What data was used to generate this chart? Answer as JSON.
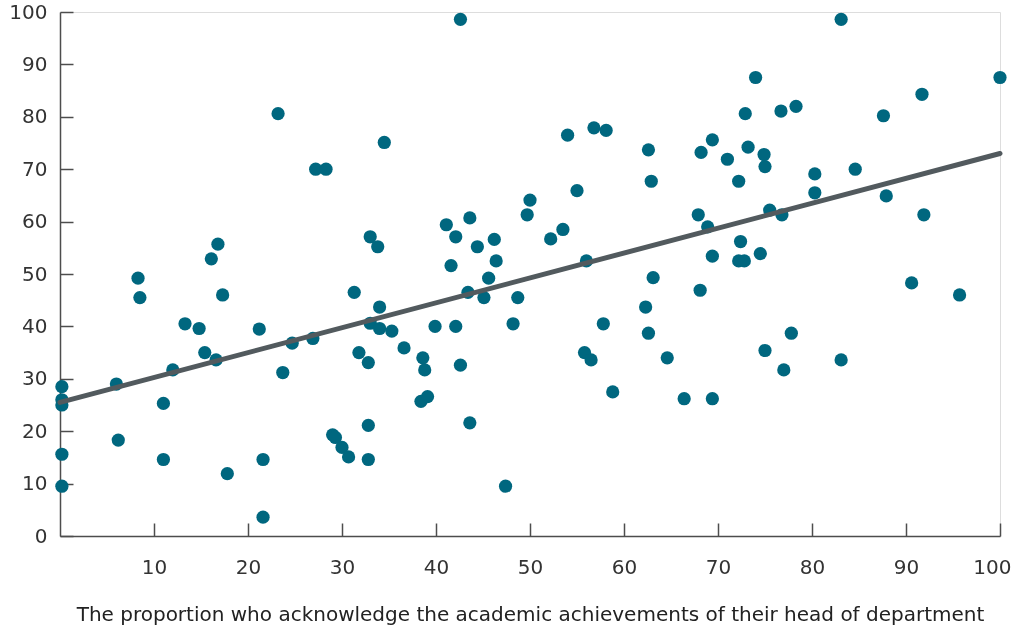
{
  "chart_data": {
    "type": "scatter",
    "xlabel": "The proportion who acknowledge the academic achievements of their head of department",
    "xlim": [
      0,
      100
    ],
    "xticks": [
      10,
      20,
      30,
      40,
      50,
      60,
      70,
      80,
      90,
      100
    ],
    "ylim": [
      0,
      100
    ],
    "yticks": [
      0,
      10,
      20,
      30,
      40,
      50,
      60,
      70,
      80,
      90,
      100
    ],
    "series": [
      {
        "color": "#00677f",
        "marker": "circle",
        "x": [
          0.2,
          0.2,
          0.2,
          0.2,
          0.2,
          6.0,
          6.2,
          8.3,
          8.5,
          11.0,
          11.0,
          12.0,
          13.3,
          14.8,
          15.4,
          16.6,
          17.3,
          17.8,
          16.1,
          16.8,
          21.2,
          21.6,
          21.6,
          23.2,
          23.7,
          24.7,
          26.9,
          27.2,
          28.3,
          29.0,
          29.3,
          30.0,
          30.7,
          31.3,
          31.8,
          32.8,
          32.8,
          32.8,
          33.0,
          33.0,
          33.8,
          34.0,
          34.0,
          34.5,
          35.3,
          36.6,
          38.4,
          38.6,
          38.8,
          39.1,
          39.9,
          41.1,
          41.6,
          42.1,
          42.1,
          42.6,
          42.6,
          43.4,
          43.6,
          43.6,
          44.4,
          45.1,
          45.6,
          46.2,
          46.4,
          47.4,
          48.2,
          48.7,
          49.7,
          50.0,
          52.2,
          53.5,
          54.0,
          55.0,
          55.8,
          56.0,
          56.5,
          56.8,
          57.8,
          58.1,
          58.8,
          62.3,
          62.6,
          62.6,
          62.9,
          63.1,
          64.6,
          66.4,
          67.9,
          68.1,
          68.2,
          68.9,
          69.4,
          69.4,
          69.4,
          71.0,
          72.2,
          72.2,
          72.4,
          72.8,
          72.9,
          73.2,
          74.0,
          74.5,
          74.9,
          75.0,
          75.0,
          75.5,
          76.7,
          76.8,
          77.0,
          77.8,
          78.3,
          80.3,
          80.3,
          83.1,
          83.1,
          84.6,
          87.6,
          87.9,
          90.6,
          91.7,
          91.9,
          95.7,
          100.0
        ],
        "values": [
          28.5,
          26.0,
          25.0,
          15.6,
          9.5,
          29.0,
          18.3,
          49.2,
          45.5,
          25.3,
          14.6,
          31.7,
          40.5,
          39.6,
          35.0,
          33.6,
          46.0,
          11.9,
          52.9,
          55.7,
          39.5,
          14.6,
          3.6,
          80.6,
          31.2,
          36.8,
          37.7,
          70.0,
          70.0,
          19.3,
          18.8,
          16.9,
          15.1,
          46.5,
          35.0,
          33.1,
          21.1,
          14.6,
          40.6,
          57.1,
          55.2,
          43.7,
          39.6,
          75.1,
          39.1,
          35.9,
          25.7,
          34.0,
          31.7,
          26.6,
          40.0,
          59.4,
          51.6,
          57.1,
          40.0,
          32.6,
          98.6,
          46.5,
          60.7,
          21.6,
          55.2,
          45.5,
          49.2,
          56.6,
          52.5,
          9.5,
          40.5,
          45.5,
          61.3,
          64.1,
          56.7,
          58.5,
          76.5,
          65.9,
          35.0,
          52.5,
          33.6,
          77.9,
          40.5,
          77.4,
          27.5,
          43.7,
          38.7,
          73.7,
          67.7,
          49.3,
          34.0,
          26.2,
          61.3,
          46.9,
          73.2,
          59.0,
          75.6,
          53.4,
          26.2,
          71.9,
          67.7,
          52.5,
          56.2,
          52.5,
          80.6,
          74.2,
          87.5,
          53.9,
          72.8,
          70.5,
          35.4,
          62.2,
          81.1,
          61.3,
          31.7,
          38.7,
          82.0,
          69.1,
          65.5,
          98.6,
          33.6,
          70.0,
          80.2,
          64.9,
          48.3,
          84.3,
          61.3,
          46.0,
          87.5
        ]
      },
      {
        "type": "line",
        "color": "#525a5e",
        "x": [
          0,
          100
        ],
        "values": [
          25.5,
          73.0
        ]
      }
    ]
  }
}
